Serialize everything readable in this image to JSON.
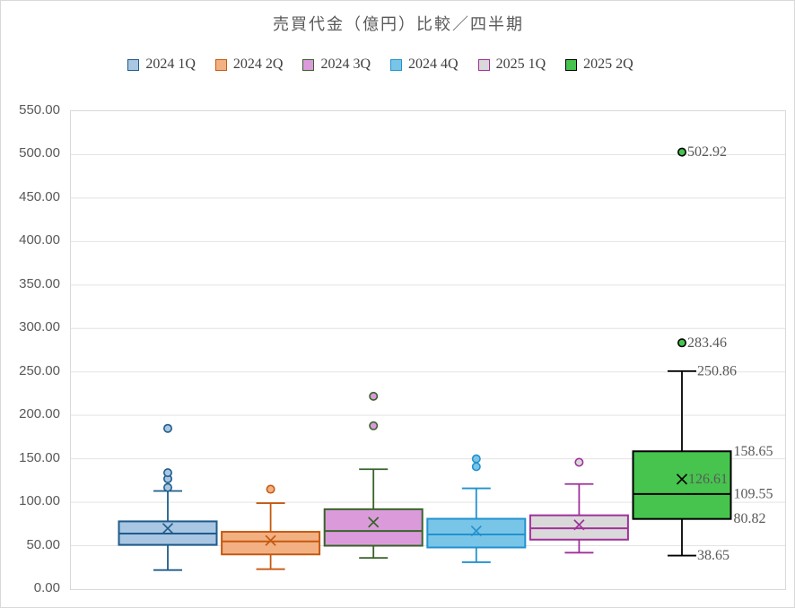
{
  "title": "売買代金（億円）比較／四半期",
  "chart_data": {
    "type": "boxplot",
    "title": "売買代金（億円）比較／四半期",
    "xlabel": "",
    "ylabel": "",
    "ylim": [
      0,
      550
    ],
    "ytick_step": 50,
    "grid": true,
    "legend_position": "top",
    "y_tick_labels": [
      {
        "value": 550,
        "label": "550.00"
      },
      {
        "value": 500,
        "label": "500.00"
      },
      {
        "value": 450,
        "label": "450.00"
      },
      {
        "value": 400,
        "label": "400.00"
      },
      {
        "value": 350,
        "label": "350.00"
      },
      {
        "value": 300,
        "label": "300.00"
      },
      {
        "value": 250,
        "label": "250.00"
      },
      {
        "value": 200,
        "label": "200.00"
      },
      {
        "value": 150,
        "label": "150.00"
      },
      {
        "value": 100,
        "label": "100.00"
      },
      {
        "value": 50,
        "label": "50.00"
      },
      {
        "value": 0,
        "label": "0.00"
      }
    ],
    "series": [
      {
        "name": "2024 1Q",
        "fill": "#A9C6E3",
        "border": "#1F5C8A",
        "min": 22,
        "q1": 51,
        "median": 64,
        "mean": 70,
        "q3": 78,
        "max": 113,
        "outliers": [
          117,
          127,
          134,
          185
        ]
      },
      {
        "name": "2024 2Q",
        "fill": "#F3B183",
        "border": "#C55A11",
        "min": 23,
        "q1": 40,
        "median": 55,
        "mean": 56,
        "q3": 66,
        "max": 99,
        "outliers": [
          115
        ]
      },
      {
        "name": "2024 3Q",
        "fill": "#DB9BDB",
        "border": "#38632A",
        "min": 36,
        "q1": 50,
        "median": 67,
        "mean": 77,
        "q3": 92,
        "max": 138,
        "outliers": [
          188,
          222
        ]
      },
      {
        "name": "2024 4Q",
        "fill": "#79C5E8",
        "border": "#2292CF",
        "min": 31,
        "q1": 48,
        "median": 63,
        "mean": 67,
        "q3": 81,
        "max": 116,
        "outliers": [
          141,
          150
        ]
      },
      {
        "name": "2025 1Q",
        "fill": "#D9D9D9",
        "border": "#A0309B",
        "min": 42,
        "q1": 57,
        "median": 70,
        "mean": 74,
        "q3": 85,
        "max": 121,
        "outliers": [
          146
        ]
      },
      {
        "name": "2025 2Q",
        "fill": "#46C44E",
        "border": "#000000",
        "min": 38.65,
        "q1": 80.82,
        "median": 109.55,
        "mean": 126.61,
        "q3": 158.65,
        "max": 250.86,
        "outliers": [
          283.46,
          502.92
        ],
        "labels": {
          "min": "38.65",
          "q1": "80.82",
          "median": "109.55",
          "mean": "126.61",
          "q3": "158.65",
          "max": "250.86",
          "outliers": [
            "283.46",
            "502.92"
          ]
        }
      }
    ]
  }
}
